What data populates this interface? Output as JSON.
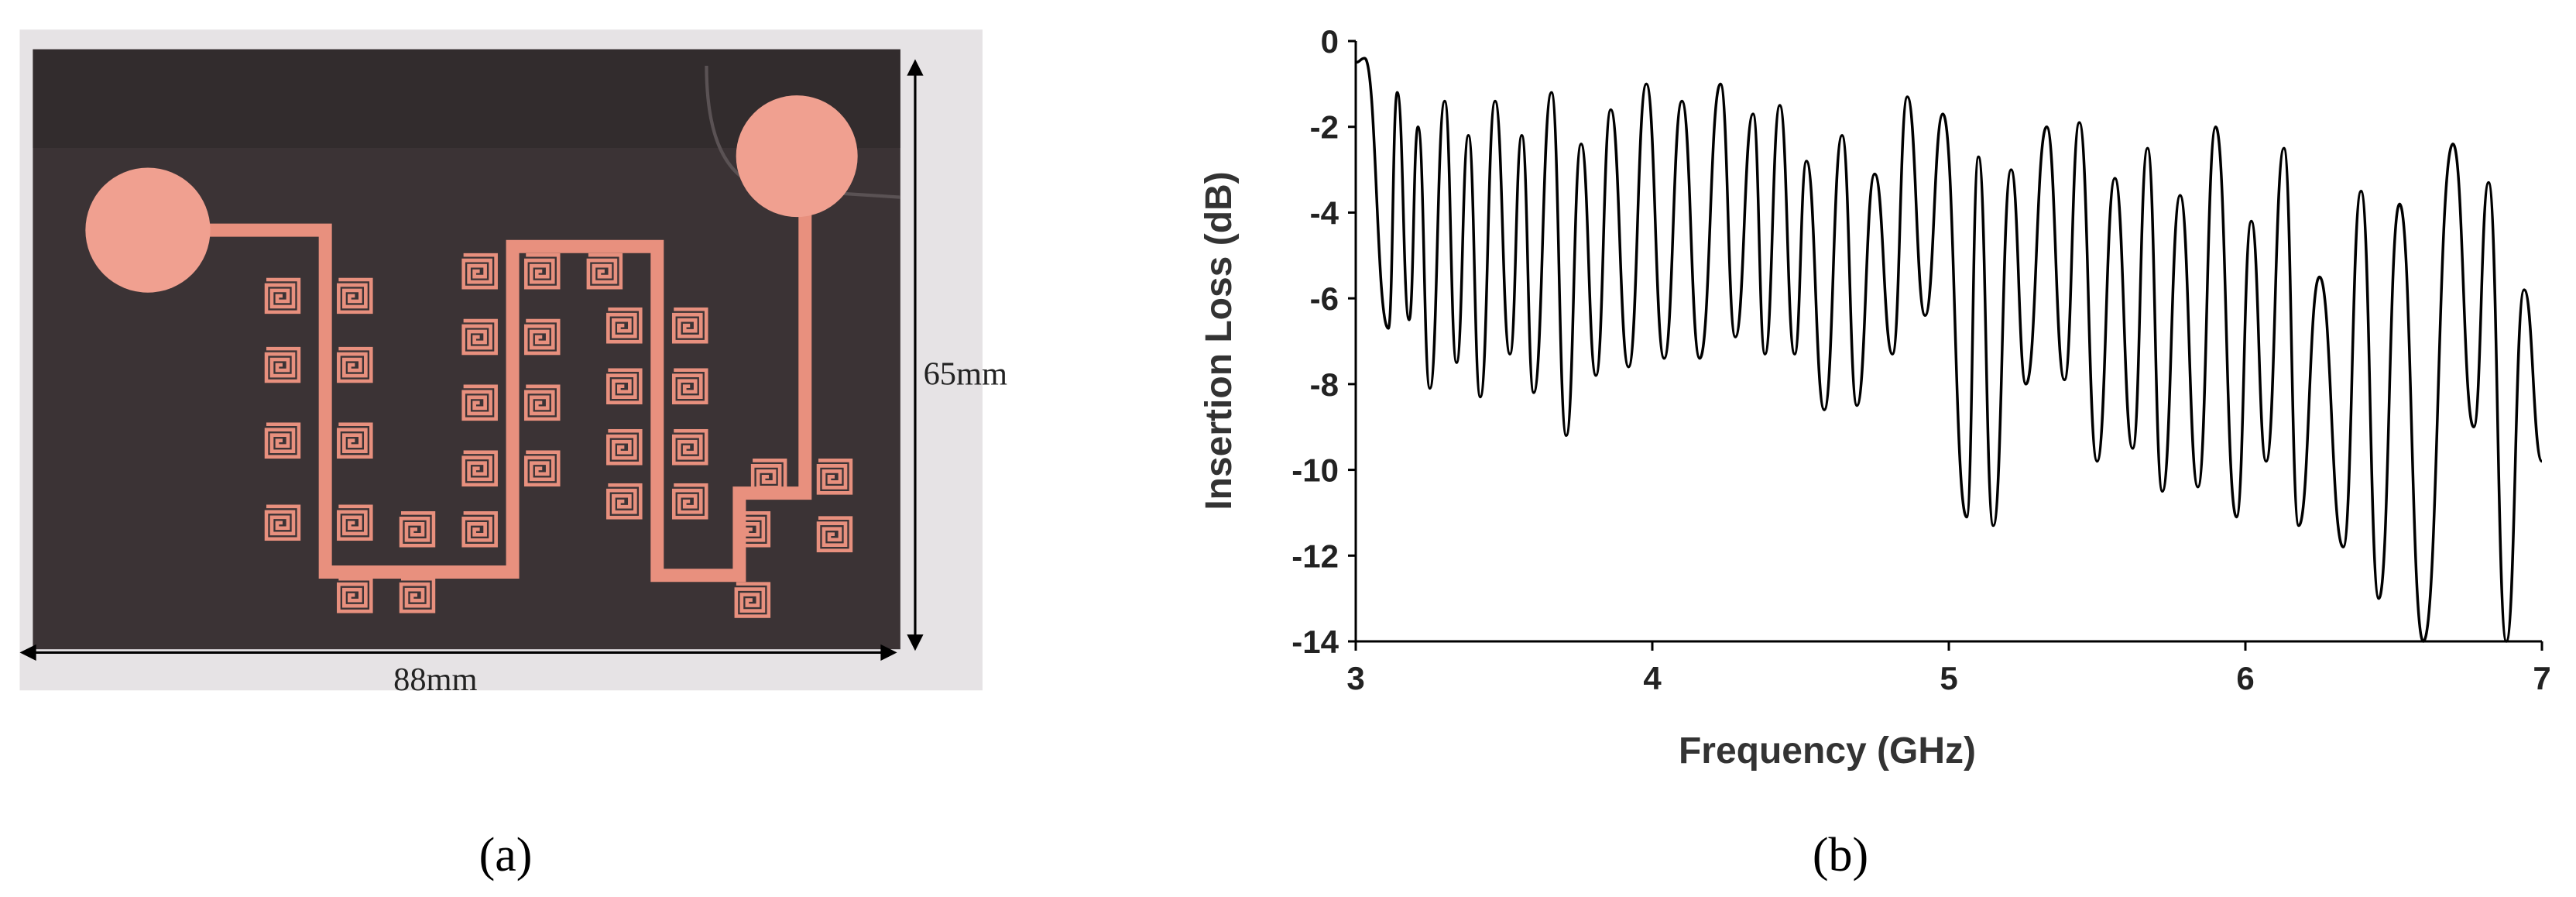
{
  "photo": {
    "height_label": "65mm",
    "width_label": "88mm",
    "caption": "(a)"
  },
  "chart_data": {
    "type": "line",
    "xlabel": "Frequency (GHz)",
    "ylabel": "Insertion Loss (dB)",
    "x": [
      3.0,
      3.03,
      3.11,
      3.14,
      3.18,
      3.21,
      3.25,
      3.3,
      3.34,
      3.38,
      3.42,
      3.47,
      3.52,
      3.56,
      3.6,
      3.66,
      3.71,
      3.76,
      3.81,
      3.86,
      3.92,
      3.98,
      4.04,
      4.1,
      4.16,
      4.23,
      4.28,
      4.34,
      4.38,
      4.43,
      4.48,
      4.52,
      4.58,
      4.64,
      4.69,
      4.75,
      4.81,
      4.86,
      4.92,
      4.98,
      5.06,
      5.1,
      5.15,
      5.21,
      5.26,
      5.33,
      5.39,
      5.44,
      5.5,
      5.56,
      5.62,
      5.67,
      5.72,
      5.78,
      5.84,
      5.9,
      5.97,
      6.02,
      6.07,
      6.13,
      6.18,
      6.25,
      6.33,
      6.39,
      6.45,
      6.52,
      6.6,
      6.7,
      6.77,
      6.82,
      6.88,
      6.94,
      7.0
    ],
    "values": [
      -0.5,
      -0.4,
      -6.7,
      -1.2,
      -6.5,
      -2.0,
      -8.1,
      -1.4,
      -7.5,
      -2.2,
      -8.3,
      -1.4,
      -7.3,
      -2.2,
      -8.2,
      -1.2,
      -9.2,
      -2.4,
      -7.8,
      -1.6,
      -7.6,
      -1.0,
      -7.4,
      -1.4,
      -7.4,
      -1.0,
      -6.9,
      -1.7,
      -7.3,
      -1.5,
      -7.3,
      -2.8,
      -8.6,
      -2.2,
      -8.5,
      -3.1,
      -7.3,
      -1.3,
      -6.4,
      -1.7,
      -11.1,
      -2.7,
      -11.3,
      -3.0,
      -8.0,
      -2.0,
      -7.9,
      -1.9,
      -9.8,
      -3.2,
      -9.5,
      -2.5,
      -10.5,
      -3.6,
      -10.4,
      -2.0,
      -11.1,
      -4.2,
      -9.8,
      -2.5,
      -11.3,
      -5.5,
      -11.8,
      -3.5,
      -13.0,
      -3.8,
      -14.0,
      -2.4,
      -9.0,
      -3.3,
      -14.0,
      -5.8,
      -9.8
    ],
    "color": "#000000",
    "xlim": [
      3,
      7
    ],
    "ylim": [
      -14,
      0
    ],
    "xticks": [
      3,
      4,
      5,
      6,
      7
    ],
    "yticks": [
      0,
      -2,
      -4,
      -6,
      -8,
      -10,
      -12,
      -14
    ],
    "caption": "(b)"
  }
}
